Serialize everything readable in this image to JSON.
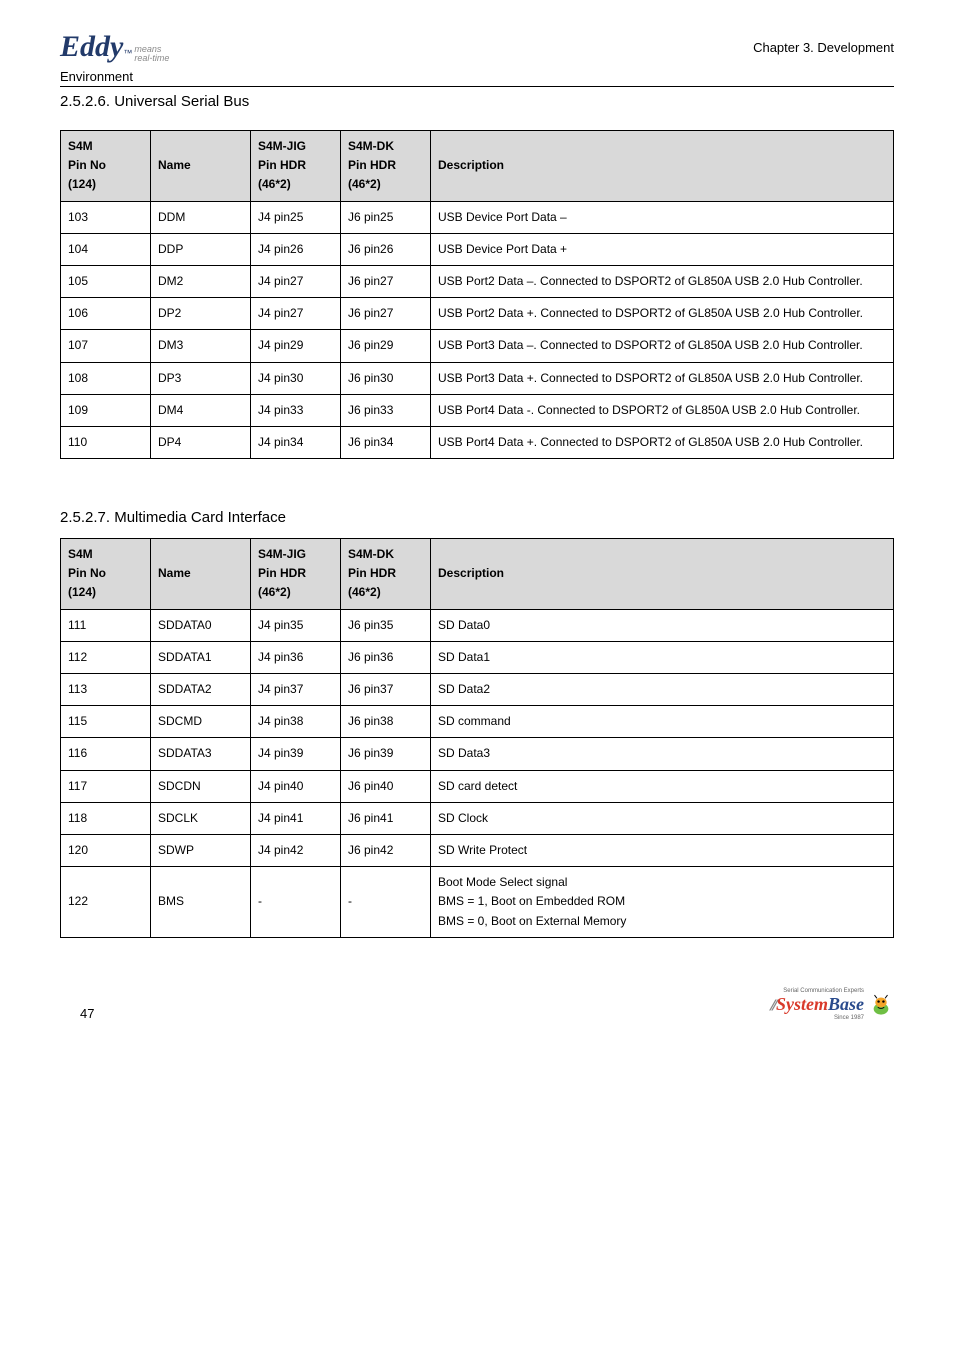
{
  "header": {
    "logo_main": "Eddy",
    "logo_tm": "™",
    "logo_sub_1": "means",
    "logo_sub_2": "real-time",
    "chapter": "Chapter 3. Development",
    "environment": "Environment"
  },
  "section1": {
    "title": "2.5.2.6. Universal Serial Bus",
    "headers": {
      "c1a": "S4M",
      "c1b": "Pin No",
      "c1c": "(124)",
      "c2": "Name",
      "c3a": "S4M-JIG",
      "c3b": "Pin HDR",
      "c3c": "(46*2)",
      "c4a": "S4M-DK",
      "c4b": "Pin HDR",
      "c4c": "(46*2)",
      "c5": "Description"
    },
    "rows": [
      {
        "pin": "103",
        "name": "DDM",
        "jig": "J4 pin25",
        "dk": "J6 pin25",
        "desc": "USB Device Port Data –"
      },
      {
        "pin": "104",
        "name": "DDP",
        "jig": "J4 pin26",
        "dk": "J6 pin26",
        "desc": "USB Device Port Data +"
      },
      {
        "pin": "105",
        "name": "DM2",
        "jig": "J4 pin27",
        "dk": "J6 pin27",
        "desc": "USB Port2 Data –.  Connected to DSPORT2 of GL850A USB 2.0 Hub Controller."
      },
      {
        "pin": "106",
        "name": "DP2",
        "jig": "J4 pin27",
        "dk": "J6 pin27",
        "desc": "USB Port2 Data +.  Connected to DSPORT2 of GL850A USB 2.0 Hub Controller."
      },
      {
        "pin": "107",
        "name": "DM3",
        "jig": "J4 pin29",
        "dk": "J6 pin29",
        "desc": "USB Port3 Data –.  Connected to DSPORT2 of GL850A USB 2.0 Hub Controller."
      },
      {
        "pin": "108",
        "name": "DP3",
        "jig": "J4 pin30",
        "dk": "J6 pin30",
        "desc": "USB Port3 Data +.  Connected to DSPORT2 of GL850A USB 2.0 Hub Controller."
      },
      {
        "pin": "109",
        "name": "DM4",
        "jig": "J4 pin33",
        "dk": "J6 pin33",
        "desc": "USB Port4 Data -.  Connected to DSPORT2 of GL850A USB 2.0 Hub Controller."
      },
      {
        "pin": "110",
        "name": "DP4",
        "jig": "J4 pin34",
        "dk": "J6 pin34",
        "desc": "USB Port4 Data +.  Connected to DSPORT2 of GL850A USB 2.0 Hub Controller."
      }
    ]
  },
  "section2": {
    "title": "2.5.2.7. Multimedia Card Interface",
    "headers": {
      "c1a": "S4M",
      "c1b": "Pin No",
      "c1c": "(124)",
      "c2": "Name",
      "c3a": "S4M-JIG",
      "c3b": "Pin HDR",
      "c3c": "(46*2)",
      "c4a": "S4M-DK",
      "c4b": "Pin HDR",
      "c4c": "(46*2)",
      "c5": "Description"
    },
    "rows": [
      {
        "pin": "111",
        "name": "SDDATA0",
        "jig": "J4 pin35",
        "dk": "J6 pin35",
        "desc": "SD Data0"
      },
      {
        "pin": "112",
        "name": "SDDATA1",
        "jig": "J4 pin36",
        "dk": "J6 pin36",
        "desc": "SD Data1"
      },
      {
        "pin": "113",
        "name": "SDDATA2",
        "jig": "J4 pin37",
        "dk": "J6 pin37",
        "desc": "SD Data2"
      },
      {
        "pin": "115",
        "name": "SDCMD",
        "jig": "J4 pin38",
        "dk": "J6 pin38",
        "desc": "SD command"
      },
      {
        "pin": "116",
        "name": "SDDATA3",
        "jig": "J4 pin39",
        "dk": "J6 pin39",
        "desc": "SD Data3"
      },
      {
        "pin": "117",
        "name": "SDCDN",
        "jig": "J4 pin40",
        "dk": "J6 pin40",
        "desc": "SD card detect"
      },
      {
        "pin": "118",
        "name": "SDCLK",
        "jig": "J4 pin41",
        "dk": "J6 pin41",
        "desc": "SD Clock"
      },
      {
        "pin": "120",
        "name": "SDWP",
        "jig": "J4 pin42",
        "dk": "J6 pin42",
        "desc": "SD Write Protect"
      },
      {
        "pin": "122",
        "name": "BMS",
        "jig": "-",
        "dk": "-",
        "desc": "Boot Mode Select signal\nBMS = 1, Boot on Embedded ROM\nBMS = 0, Boot on External Memory"
      }
    ]
  },
  "footer": {
    "page": "47",
    "brand_1": "System",
    "brand_2": "Base",
    "sub1": "Serial Communication Experts",
    "sub2": "Since 1987"
  },
  "colors": {
    "header_bg": "#d9d9d9",
    "border": "#000000",
    "logo_blue": "#223a6a",
    "footer_red": "#d93a2b",
    "footer_blue": "#2a4b8d"
  }
}
